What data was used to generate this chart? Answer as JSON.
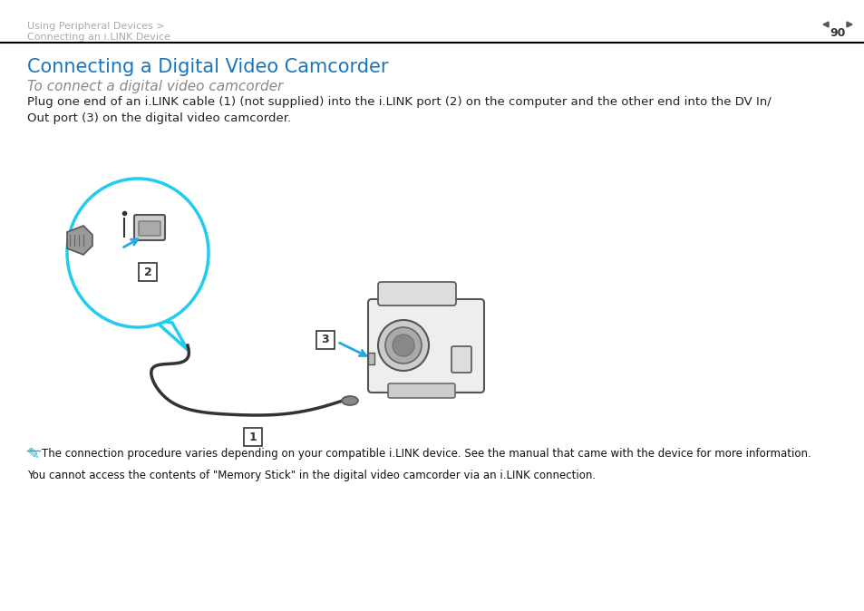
{
  "bg_color": "#ffffff",
  "header_breadcrumb_line1": "Using Peripheral Devices >",
  "header_breadcrumb_line2": "Connecting an i.LINK Device",
  "header_page_num": "90",
  "header_text_color": "#aaaaaa",
  "header_line_color": "#000000",
  "title": "Connecting a Digital Video Camcorder",
  "title_color": "#1a75bb",
  "title_fontsize": 15,
  "subtitle": "To connect a digital video camcorder",
  "subtitle_color": "#888888",
  "subtitle_fontsize": 11,
  "body_text": "Plug one end of an i.LINK cable (1) (not supplied) into the i.LINK port (2) on the computer and the other end into the DV In/\nOut port (3) on the digital video camcorder.",
  "body_fontsize": 9.5,
  "body_color": "#222222",
  "note_icon_color": "#22aacc",
  "note_text1": "The connection procedure varies depending on your compatible i.LINK device. See the manual that came with the device for more information.",
  "note_text2": "You cannot access the contents of \"Memory Stick\" in the digital video camcorder via an i.LINK connection.",
  "note_fontsize": 8.5,
  "note_color": "#111111"
}
